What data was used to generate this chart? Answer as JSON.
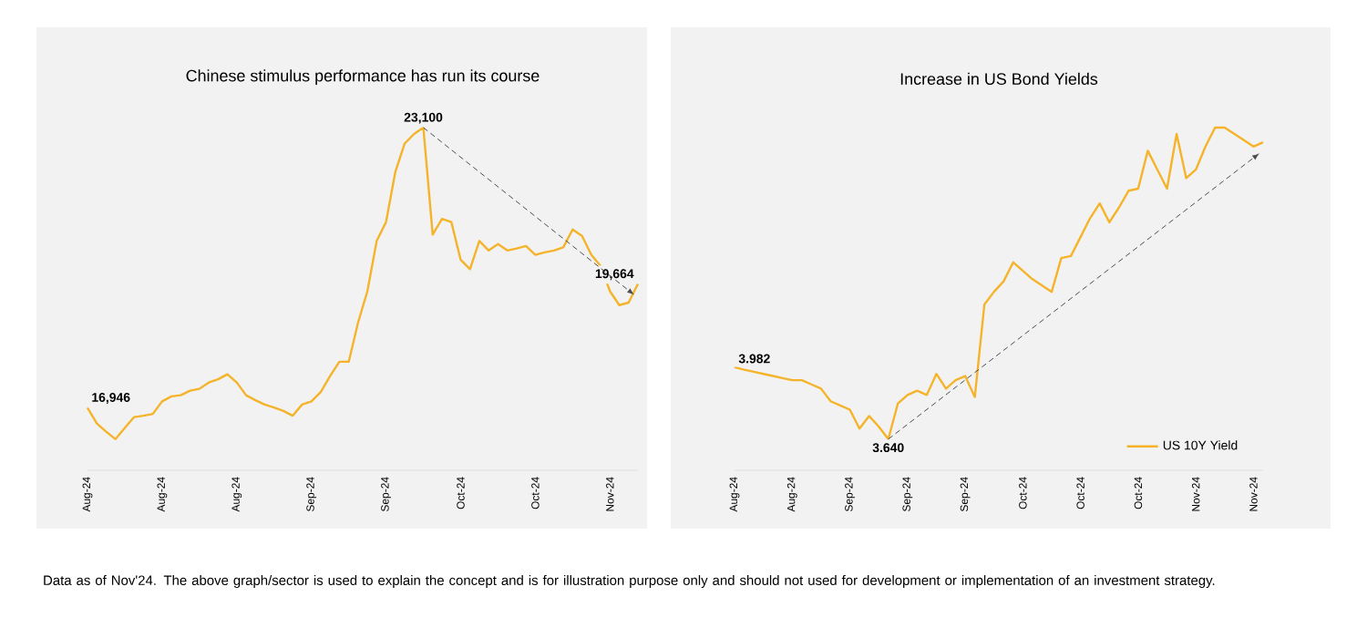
{
  "chart_data": [
    {
      "type": "line",
      "title": "Chinese stimulus performance has run its course",
      "marker": "none",
      "legend": false,
      "categories": [
        "Aug-24",
        null,
        null,
        null,
        null,
        null,
        null,
        null,
        "Aug-24",
        null,
        null,
        null,
        null,
        null,
        null,
        null,
        "Aug-24",
        null,
        null,
        null,
        null,
        null,
        null,
        null,
        "Sep-24",
        null,
        null,
        null,
        null,
        null,
        null,
        null,
        "Sep-24",
        null,
        null,
        null,
        null,
        null,
        null,
        null,
        "Oct-24",
        null,
        null,
        null,
        null,
        null,
        null,
        null,
        "Oct-24",
        null,
        null,
        null,
        null,
        null,
        null,
        null,
        "Nov-24",
        null,
        null,
        null
      ],
      "series": [
        {
          "color": "#f5b32a",
          "values": [
            16946,
            16600,
            16420,
            16255,
            16500,
            16740,
            16770,
            16810,
            17085,
            17195,
            17220,
            17320,
            17360,
            17500,
            17570,
            17680,
            17500,
            17220,
            17110,
            17015,
            16950,
            16875,
            16770,
            17015,
            17085,
            17290,
            17640,
            17955,
            17955,
            18815,
            19505,
            20610,
            21025,
            22130,
            22750,
            22960,
            23100,
            20750,
            21095,
            21025,
            20195,
            19990,
            20610,
            20400,
            20540,
            20400,
            20445,
            20500,
            20305,
            20360,
            20400,
            20470,
            20860,
            20720,
            20305,
            20055,
            19505,
            19200,
            19255,
            19664
          ],
          "value_labels": [
            "16,946",
            null,
            null,
            null,
            null,
            null,
            null,
            null,
            null,
            null,
            null,
            null,
            null,
            null,
            null,
            null,
            null,
            null,
            null,
            null,
            null,
            null,
            null,
            null,
            null,
            null,
            null,
            null,
            null,
            null,
            null,
            null,
            null,
            null,
            null,
            null,
            "23,100",
            null,
            null,
            null,
            null,
            null,
            null,
            null,
            null,
            null,
            null,
            null,
            null,
            null,
            null,
            null,
            null,
            null,
            null,
            null,
            null,
            null,
            null,
            "19,664"
          ]
        }
      ],
      "annotations": [
        "Data as of Nov'24. The above graph/sector is used to explain the concept and is for illustration purpose only and should not used for development or implementation of an investment strategy."
      ]
    },
    {
      "type": "line",
      "title": "Increase in US Bond Yields",
      "marker": "none",
      "legend": "bottom right",
      "categories": [
        "Aug-24",
        null,
        null,
        null,
        null,
        null,
        "Aug-24",
        null,
        null,
        null,
        null,
        null,
        "Sep-24",
        null,
        null,
        null,
        null,
        null,
        "Sep-24",
        null,
        null,
        null,
        null,
        null,
        "Sep-24",
        null,
        null,
        null,
        null,
        null,
        "Oct-24",
        null,
        null,
        null,
        null,
        null,
        "Oct-24",
        null,
        null,
        null,
        null,
        null,
        "Oct-24",
        null,
        null,
        null,
        null,
        null,
        "Nov-24",
        null,
        null,
        null,
        null,
        null,
        "Nov-24",
        null
      ],
      "series": [
        {
          "name": "US 10Y Yield",
          "color": "#f5b32a",
          "values": [
            3.982,
            3.97,
            3.96,
            3.95,
            3.94,
            3.93,
            3.92,
            3.92,
            3.9,
            3.88,
            3.82,
            3.8,
            3.78,
            3.69,
            3.75,
            3.7,
            3.64,
            3.81,
            3.85,
            3.87,
            3.85,
            3.95,
            3.88,
            3.92,
            3.94,
            3.84,
            4.28,
            4.34,
            4.39,
            4.48,
            4.44,
            4.4,
            4.37,
            4.34,
            4.5,
            4.51,
            4.6,
            4.69,
            4.76,
            4.67,
            4.74,
            4.82,
            4.83,
            5.01,
            4.92,
            4.83,
            5.09,
            4.88,
            4.92,
            5.03,
            5.12,
            5.12,
            5.09,
            5.06,
            5.03,
            5.05
          ],
          "value_labels": [
            "3.982",
            null,
            null,
            null,
            null,
            null,
            null,
            null,
            null,
            null,
            null,
            null,
            null,
            null,
            null,
            null,
            "3.640",
            null,
            null,
            null,
            null,
            null,
            null,
            null,
            null,
            null,
            null,
            null,
            null,
            null,
            null,
            null,
            null,
            null,
            null,
            null,
            null,
            null,
            null,
            null,
            null,
            null,
            null,
            null,
            null,
            null,
            null,
            null,
            null,
            null,
            null,
            null,
            null,
            null,
            null,
            null
          ]
        }
      ]
    }
  ]
}
